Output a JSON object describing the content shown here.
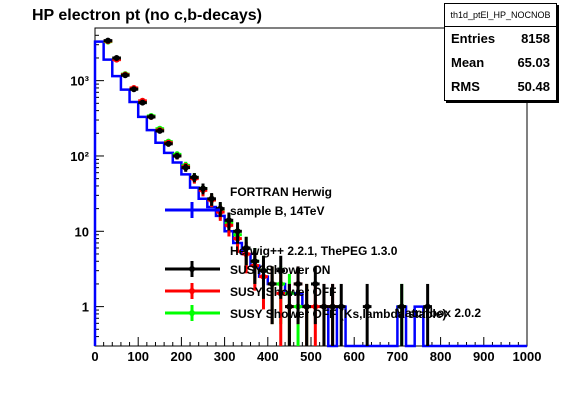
{
  "chart_data": {
    "type": "histogram",
    "title": "HP electron pt (no c,b-decays)",
    "x_axis": {
      "range": [
        0,
        1000
      ],
      "ticks": [
        0,
        100,
        200,
        300,
        400,
        500,
        600,
        700,
        800,
        900,
        1000
      ],
      "tick_labels": [
        "0",
        "100",
        "200",
        "300",
        "400",
        "500",
        "600",
        "700",
        "800",
        "900",
        "1000"
      ],
      "scale": "linear"
    },
    "y_axis": {
      "scale": "log",
      "range": [
        0.3,
        5000
      ],
      "ticks": [
        1,
        10,
        100,
        1000
      ],
      "tick_labels": [
        "1",
        "10",
        "10²",
        "10³"
      ]
    },
    "stats_box": {
      "name": "th1d_ptEl_HP_NOCNOB",
      "entries_label": "Entries",
      "entries": "8158",
      "mean_label": "Mean",
      "mean": "65.03",
      "rms_label": "RMS",
      "rms": "50.48"
    },
    "legend": {
      "header1": "FORTRAN Herwig",
      "header2": "Herwig++ 2.2.1, ThePEG 1.3.0",
      "overlap_text": "Matchbox 2.0.2",
      "entries": [
        {
          "label": "sample B, 14TeV",
          "color": "#0000ff"
        },
        {
          "label": "SUSY Shower ON",
          "color": "#000000"
        },
        {
          "label": "SUSY Shower OFF",
          "color": "#ff0000"
        },
        {
          "label": "SUSY Shower OFF (Ks,lambda stable)",
          "color": "#00ff00"
        }
      ]
    },
    "series": [
      {
        "name": "sample B, 14TeV",
        "color": "#0000ff",
        "bin_width": 20,
        "x": [
          10,
          30,
          50,
          70,
          90,
          110,
          130,
          150,
          170,
          190,
          210,
          230,
          250,
          270,
          290,
          310,
          330,
          350,
          370,
          390,
          410,
          430,
          450,
          470,
          490,
          510,
          530,
          550,
          570,
          590,
          610,
          630,
          650,
          670,
          690,
          710,
          730,
          750,
          770,
          790,
          810,
          830,
          850,
          870,
          890,
          910,
          930,
          950,
          970,
          990
        ],
        "y": [
          3300,
          1900,
          1150,
          760,
          520,
          330,
          220,
          150,
          110,
          82,
          57,
          38,
          27,
          21,
          16,
          10,
          7,
          5,
          3.5,
          2.5,
          2,
          2,
          1.5,
          1.5,
          1,
          1,
          1,
          0.3,
          1,
          0.3,
          0.3,
          0.3,
          0.3,
          0.3,
          0.3,
          1,
          0.3,
          1,
          0.3,
          0.3,
          0.3,
          0.3,
          0.3,
          0.3,
          0.3,
          0.3,
          0.3,
          0.3,
          0.3,
          0.3
        ]
      },
      {
        "name": "SUSY Shower ON",
        "color": "#000000",
        "x": [
          30,
          50,
          70,
          90,
          110,
          130,
          150,
          170,
          190,
          210,
          230,
          250,
          270,
          290,
          310,
          330,
          350,
          370,
          390,
          410,
          430,
          450,
          470,
          490,
          510,
          530,
          550,
          570,
          630,
          710,
          770
        ],
        "y": [
          3400,
          2000,
          1180,
          770,
          510,
          330,
          215,
          145,
          100,
          70,
          52,
          37,
          27,
          20,
          14,
          10,
          6,
          4,
          3,
          2,
          3,
          1,
          2,
          1,
          2,
          1,
          1,
          1,
          1,
          1,
          1
        ]
      },
      {
        "name": "SUSY Shower OFF",
        "color": "#ff0000",
        "x": [
          30,
          50,
          70,
          90,
          110,
          130,
          150,
          170,
          190,
          210,
          230,
          250,
          270,
          290,
          310,
          330,
          350,
          370,
          390,
          410,
          430,
          450,
          470,
          490,
          510,
          530,
          550
        ],
        "y": [
          3350,
          1900,
          1200,
          800,
          540,
          330,
          220,
          150,
          100,
          72,
          50,
          35,
          26,
          18,
          12,
          8,
          5,
          3.5,
          2.5,
          2,
          1.5,
          1,
          2,
          1,
          1,
          1,
          1
        ]
      },
      {
        "name": "SUSY Shower OFF (Ks,lambda stable)",
        "color": "#00ff00",
        "x": [
          30,
          50,
          70,
          90,
          110,
          130,
          150,
          170,
          190,
          210,
          230,
          250,
          270,
          290,
          310,
          330,
          350,
          370,
          390,
          410,
          430,
          450,
          470,
          490,
          710
        ],
        "y": [
          3300,
          1950,
          1220,
          780,
          520,
          340,
          230,
          155,
          105,
          75,
          52,
          37,
          26,
          19,
          13,
          9,
          6,
          4,
          3,
          2,
          2,
          1.5,
          1,
          1,
          1
        ]
      }
    ]
  }
}
